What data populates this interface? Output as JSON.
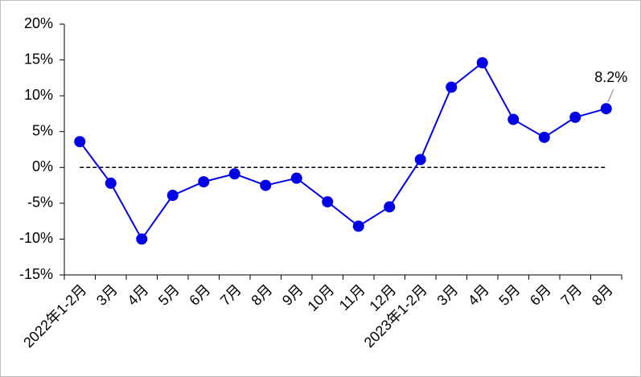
{
  "chart_data": {
    "type": "line",
    "categories": [
      "2022年1-2月",
      "3月",
      "4月",
      "5月",
      "6月",
      "7月",
      "8月",
      "9月",
      "10月",
      "11月",
      "12月",
      "2023年1-2月",
      "3月",
      "4月",
      "5月",
      "6月",
      "7月",
      "8月"
    ],
    "series": [
      {
        "color": "#0000e6",
        "values": [
          3.6,
          -2.2,
          -10.0,
          -3.9,
          -2.0,
          -0.9,
          -2.5,
          -1.5,
          -4.8,
          -8.2,
          -5.5,
          1.1,
          11.2,
          14.6,
          6.7,
          4.2,
          7.0,
          8.2
        ],
        "value_labels": [
          null,
          null,
          null,
          null,
          null,
          null,
          null,
          null,
          null,
          null,
          null,
          null,
          null,
          null,
          null,
          null,
          null,
          "8.2%"
        ]
      }
    ],
    "ylim": [
      -15,
      20
    ],
    "yticks": [
      {
        "value": -15,
        "label": "-15%"
      },
      {
        "value": -10,
        "label": "-10%"
      },
      {
        "value": -5,
        "label": "-5%"
      },
      {
        "value": 0,
        "label": "0%"
      },
      {
        "value": 5,
        "label": "5%"
      },
      {
        "value": 10,
        "label": "10%"
      },
      {
        "value": 15,
        "label": "15%"
      },
      {
        "value": 20,
        "label": "20%"
      }
    ],
    "reference_line": 0
  }
}
